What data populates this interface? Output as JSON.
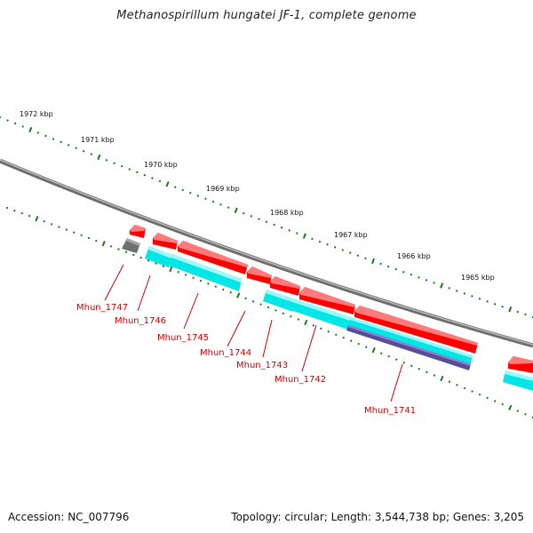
{
  "header": {
    "title": "Methanospirillum hungatei JF-1, complete genome"
  },
  "footer": {
    "accession": "Accession: NC_007796",
    "summary": "Topology: circular; Length: 3,544,738 bp; Genes: 3,205"
  },
  "ticks": [
    {
      "kb": 1972,
      "label": "1972 kbp"
    },
    {
      "kb": 1971,
      "label": "1971 kbp"
    },
    {
      "kb": 1970,
      "label": "1970 kbp"
    },
    {
      "kb": 1969,
      "label": "1969 kbp"
    },
    {
      "kb": 1968,
      "label": "1968 kbp"
    },
    {
      "kb": 1967,
      "label": "1967 kbp"
    },
    {
      "kb": 1966,
      "label": "1966 kbp"
    },
    {
      "kb": 1965,
      "label": "1965 kbp"
    }
  ],
  "genes": [
    {
      "label": "Mhun_1747"
    },
    {
      "label": "Mhun_1746"
    },
    {
      "label": "Mhun_1745"
    },
    {
      "label": "Mhun_1744"
    },
    {
      "label": "Mhun_1743"
    },
    {
      "label": "Mhun_1742"
    },
    {
      "label": "Mhun_1741"
    }
  ],
  "colors": {
    "backbone": "#8a8a8a",
    "tick": "#1a7a1a",
    "cds": "#ff0000",
    "gene": "#00e5e5",
    "rna_gene": "#5a4a9a",
    "other_feature": "#707070",
    "label": "#cc0000"
  }
}
